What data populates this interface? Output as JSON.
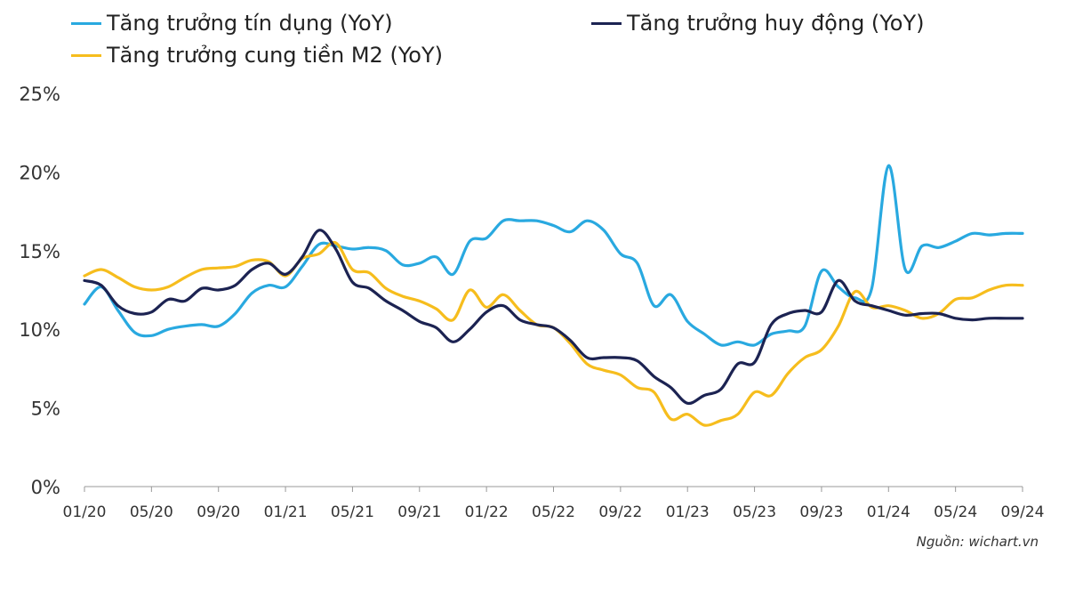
{
  "chart_data": {
    "type": "line",
    "title": "",
    "xlabel": "",
    "ylabel": "",
    "ylim": [
      0,
      25
    ],
    "y_ticks": [
      "0%",
      "5%",
      "10%",
      "15%",
      "20%",
      "25%"
    ],
    "x_ticks": [
      "01/20",
      "05/20",
      "09/20",
      "01/21",
      "05/21",
      "09/21",
      "01/22",
      "05/22",
      "09/22",
      "01/23",
      "05/23",
      "09/23",
      "01/24",
      "05/24",
      "09/24"
    ],
    "x": [
      "01/20",
      "02/20",
      "03/20",
      "04/20",
      "05/20",
      "06/20",
      "07/20",
      "08/20",
      "09/20",
      "10/20",
      "11/20",
      "12/20",
      "01/21",
      "02/21",
      "03/21",
      "04/21",
      "05/21",
      "06/21",
      "07/21",
      "08/21",
      "09/21",
      "10/21",
      "11/21",
      "12/21",
      "01/22",
      "02/22",
      "03/22",
      "04/22",
      "05/22",
      "06/22",
      "07/22",
      "08/22",
      "09/22",
      "10/22",
      "11/22",
      "12/22",
      "01/23",
      "02/23",
      "03/23",
      "04/23",
      "05/23",
      "06/23",
      "07/23",
      "08/23",
      "09/23",
      "10/23",
      "11/23",
      "12/23",
      "01/24",
      "02/24",
      "03/24",
      "04/24",
      "05/24",
      "06/24",
      "07/24",
      "08/24",
      "09/24"
    ],
    "legend_position": "top",
    "grid": false,
    "series": [
      {
        "name": "Tăng trưởng tín dụng (YoY)",
        "color": "#29a9e0",
        "values": [
          11.6,
          12.7,
          11.2,
          9.8,
          9.6,
          10.0,
          10.2,
          10.3,
          10.2,
          11.0,
          12.3,
          12.8,
          12.7,
          14.0,
          15.4,
          15.3,
          15.1,
          15.2,
          15.0,
          14.1,
          14.2,
          14.6,
          13.5,
          15.6,
          15.8,
          16.9,
          16.9,
          16.9,
          16.6,
          16.2,
          16.9,
          16.3,
          14.8,
          14.2,
          11.5,
          12.2,
          10.5,
          9.7,
          9.0,
          9.2,
          9.0,
          9.7,
          9.9,
          10.2,
          13.7,
          12.7,
          12.0,
          12.6,
          20.4,
          13.8,
          15.3,
          15.2,
          15.6,
          16.1,
          16.0,
          16.1,
          16.1
        ]
      },
      {
        "name": "Tăng trưởng huy động (YoY)",
        "color": "#1c2352",
        "values": [
          13.1,
          12.8,
          11.5,
          11.0,
          11.1,
          11.9,
          11.8,
          12.6,
          12.5,
          12.8,
          13.8,
          14.2,
          13.5,
          14.6,
          16.3,
          15.1,
          13.0,
          12.6,
          11.8,
          11.2,
          10.5,
          10.1,
          9.2,
          10.0,
          11.1,
          11.5,
          10.6,
          10.3,
          10.1,
          9.3,
          8.2,
          8.2,
          8.2,
          8.0,
          7.0,
          6.3,
          5.3,
          5.8,
          6.2,
          7.8,
          7.9,
          10.3,
          11.0,
          11.2,
          11.1,
          13.1,
          11.8,
          11.5,
          11.2,
          10.9,
          11.0,
          11.0,
          10.7,
          10.6,
          10.7,
          10.7,
          10.7
        ]
      },
      {
        "name": "Tăng trưởng cung tiền M2 (YoY)",
        "color": "#f6bd1d",
        "values": [
          13.4,
          13.8,
          13.3,
          12.7,
          12.5,
          12.7,
          13.3,
          13.8,
          13.9,
          14.0,
          14.4,
          14.3,
          13.4,
          14.5,
          14.8,
          15.5,
          13.8,
          13.6,
          12.6,
          12.1,
          11.8,
          11.3,
          10.6,
          12.5,
          11.4,
          12.2,
          11.2,
          10.3,
          10.1,
          9.1,
          7.8,
          7.4,
          7.1,
          6.3,
          6.0,
          4.3,
          4.6,
          3.9,
          4.2,
          4.6,
          6.0,
          5.8,
          7.2,
          8.2,
          8.7,
          10.2,
          12.4,
          11.4,
          11.5,
          11.2,
          10.7,
          11.0,
          11.9,
          12.0,
          12.5,
          12.8,
          12.8
        ]
      }
    ]
  },
  "source": "Nguồn: wichart.vn"
}
